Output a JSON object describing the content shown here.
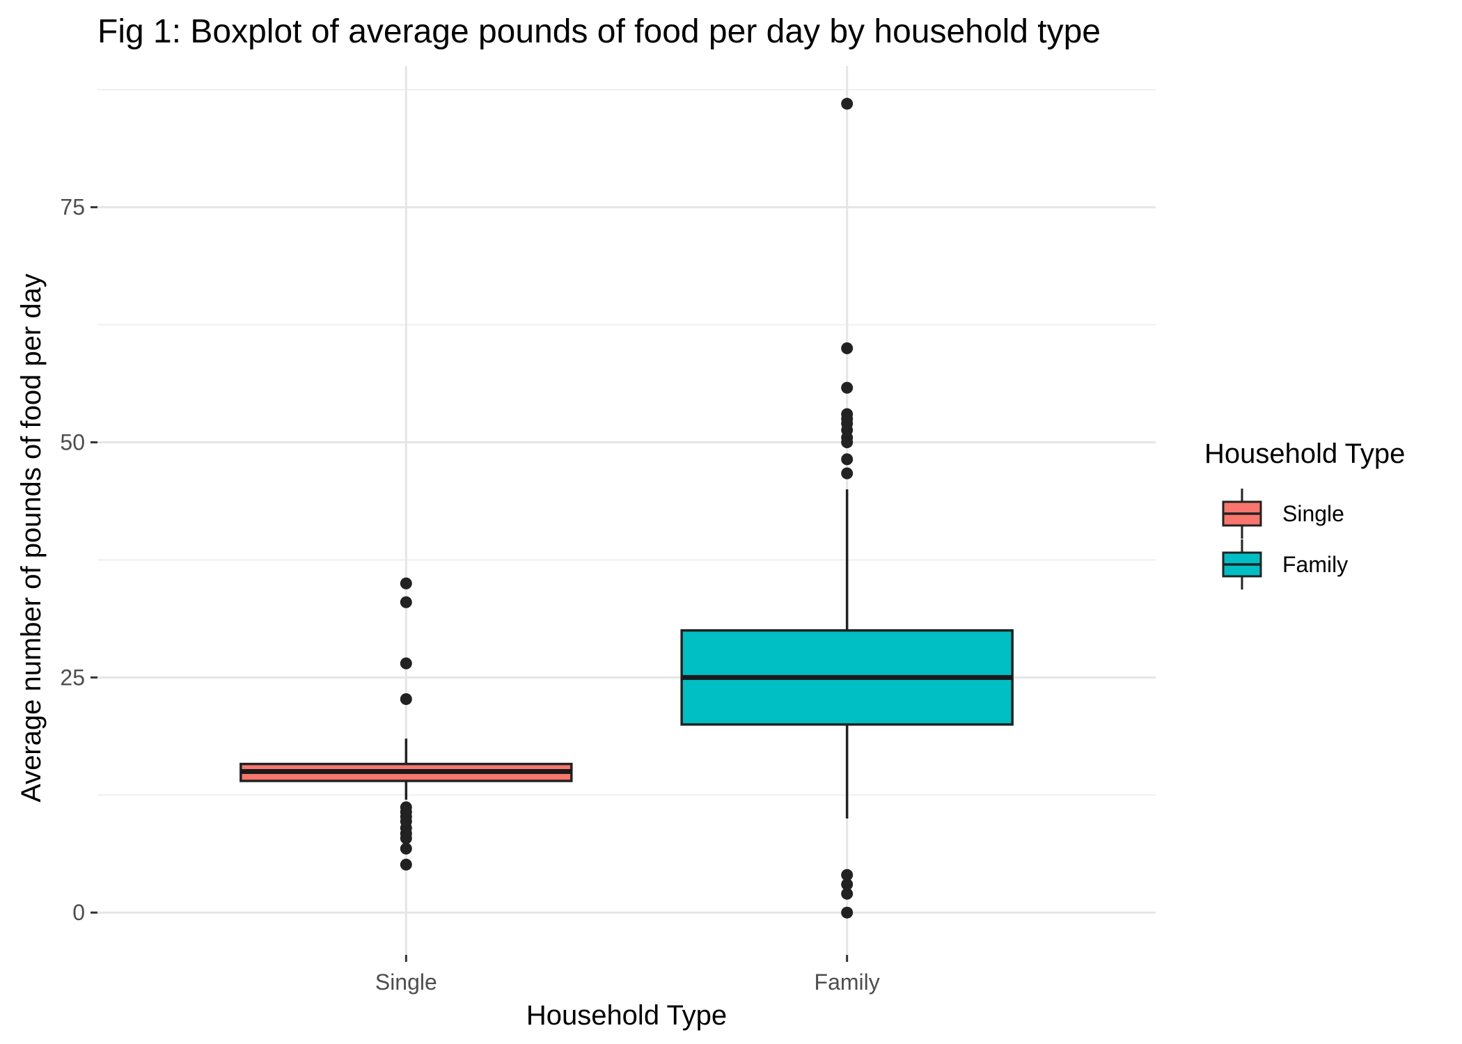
{
  "chart_data": {
    "type": "boxplot",
    "title": "Fig 1: Boxplot of average pounds of food per day by household type",
    "xlabel": "Household Type",
    "ylabel": "Average number of pounds of food per day",
    "ylim": [
      -4.5,
      90
    ],
    "yticks": [
      0,
      25,
      50,
      75
    ],
    "grid": true,
    "legend": {
      "title": "Household Type",
      "position": "right"
    },
    "categories": [
      "Single",
      "Family"
    ],
    "series": [
      {
        "name": "Single",
        "color": "#F8766D",
        "q1": 14.0,
        "median": 15.0,
        "q3": 15.8,
        "whisker_low": 12.0,
        "whisker_high": 18.5,
        "outliers": [
          35.0,
          33.0,
          26.5,
          22.7,
          11.2,
          10.7,
          10.2,
          9.7,
          9.0,
          8.4,
          7.9,
          6.8,
          5.1
        ]
      },
      {
        "name": "Family",
        "color": "#00BFC4",
        "q1": 20.0,
        "median": 25.0,
        "q3": 30.0,
        "whisker_low": 10.0,
        "whisker_high": 45.0,
        "outliers": [
          86.0,
          60.0,
          55.8,
          53.0,
          52.5,
          52.0,
          51.3,
          50.5,
          50.0,
          48.2,
          46.7,
          4.0,
          3.0,
          2.0,
          0.0
        ]
      }
    ]
  }
}
